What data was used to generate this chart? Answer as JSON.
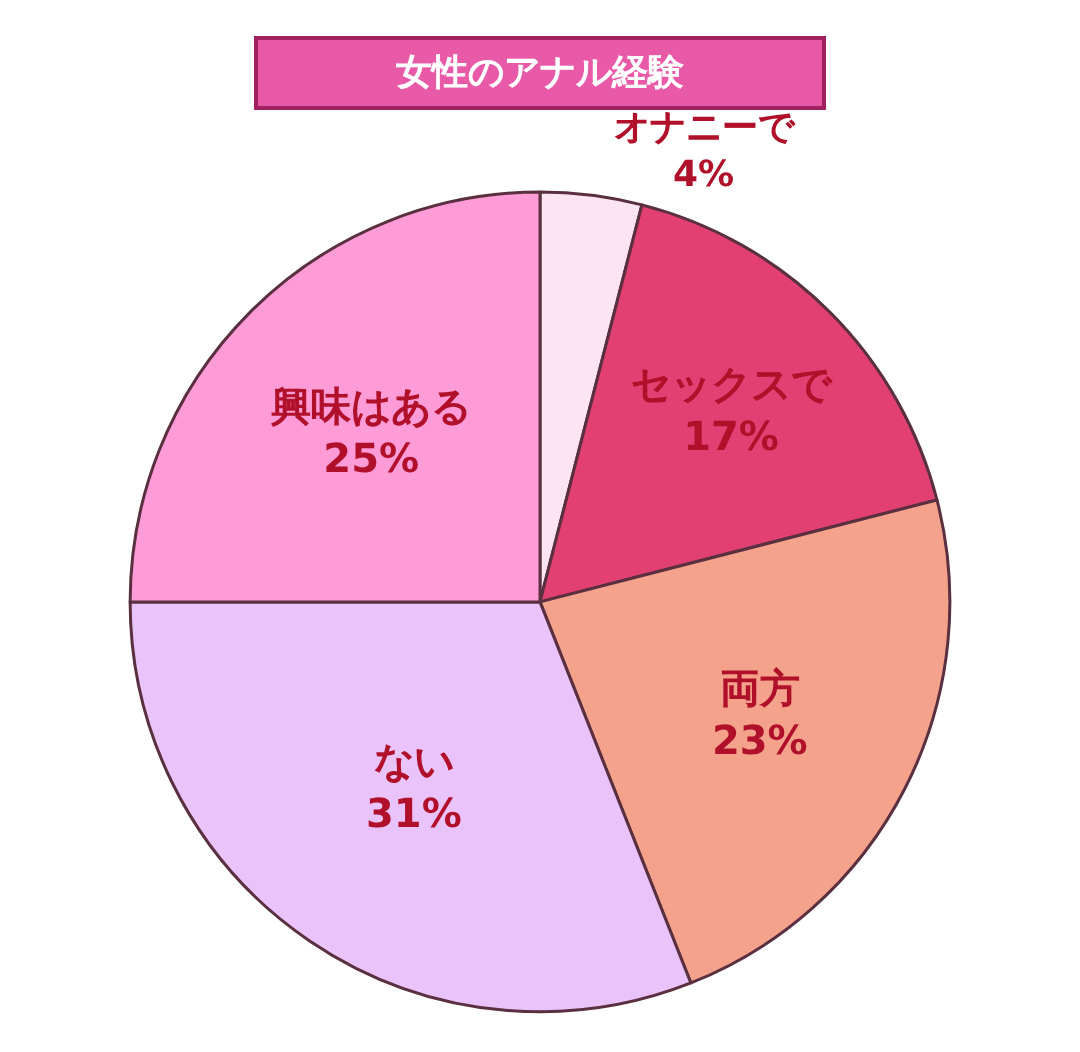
{
  "chart_data": {
    "type": "pie",
    "title": "女性のアナル経験",
    "categories": [
      "オナニーで",
      "セックスで",
      "両方",
      "ない",
      "興味はある"
    ],
    "values": [
      4,
      17,
      23,
      31,
      25
    ],
    "value_labels": [
      "4%",
      "17%",
      "23%",
      "31%",
      "25%"
    ],
    "colors": [
      "#fde4f2",
      "#e23f72",
      "#f5a28c",
      "#ebc3fb",
      "#ff9bd6"
    ],
    "legend": false
  }
}
